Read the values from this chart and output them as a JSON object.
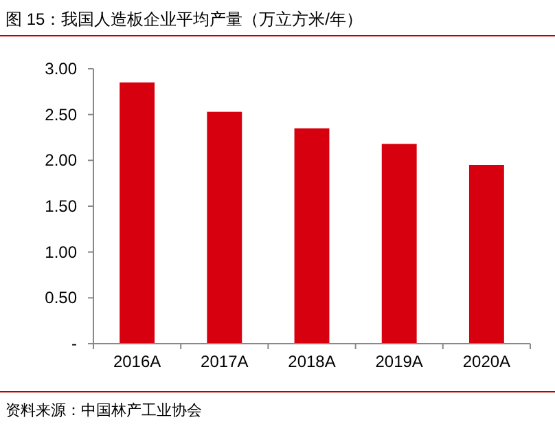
{
  "chart_data": {
    "type": "bar",
    "title": "图 15：我国人造板企业平均产量（万立方米/年）",
    "categories": [
      "2016A",
      "2017A",
      "2018A",
      "2019A",
      "2020A"
    ],
    "values": [
      2.85,
      2.53,
      2.35,
      2.18,
      1.95
    ],
    "color": "#d7000f",
    "ylim": [
      0,
      3
    ],
    "yticks": [
      {
        "value": 0,
        "label": "-"
      },
      {
        "value": 0.5,
        "label": "0.50"
      },
      {
        "value": 1,
        "label": "1.00"
      },
      {
        "value": 1.5,
        "label": "1.50"
      },
      {
        "value": 2,
        "label": "2.00"
      },
      {
        "value": 2.5,
        "label": "2.50"
      },
      {
        "value": 3,
        "label": "3.00"
      }
    ],
    "annotations": [
      "资料来源：中国林产工业协会"
    ]
  }
}
